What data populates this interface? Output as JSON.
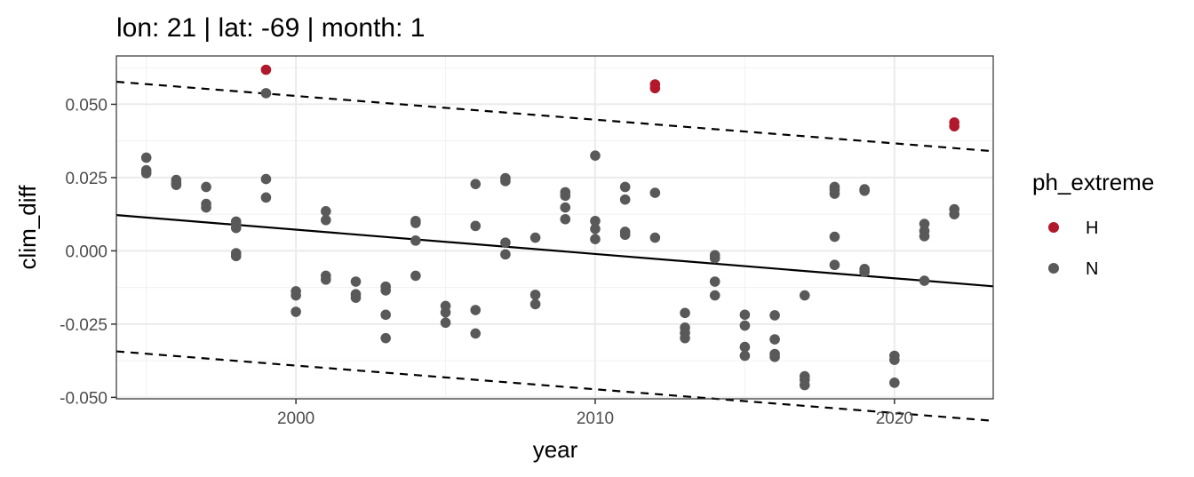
{
  "chart_data": {
    "type": "scatter",
    "title": "lon: 21 | lat: -69 | month: 1",
    "xlabel": "year",
    "ylabel": "clim_diff",
    "xlim": [
      1994.0,
      2023.3
    ],
    "ylim": [
      -0.0505,
      0.0665
    ],
    "xticks": [
      2000,
      2010,
      2020
    ],
    "xtick_labels": [
      "2000",
      "2010",
      "2020"
    ],
    "yticks": [
      -0.05,
      -0.025,
      0.0,
      0.025,
      0.05
    ],
    "ytick_labels": [
      "-0.050",
      "-0.025",
      "0.000",
      "0.025",
      "0.050"
    ],
    "grid": true,
    "legend": {
      "title": "ph_extreme",
      "position": "right",
      "entries": [
        {
          "label": "H",
          "color": "#b2182b"
        },
        {
          "label": "N",
          "color": "#595959"
        }
      ]
    },
    "series": [
      {
        "name": "H",
        "color": "#b2182b",
        "points": [
          [
            1999,
            0.0618
          ],
          [
            2012,
            0.0568
          ],
          [
            2012,
            0.0555
          ],
          [
            2022,
            0.0438
          ],
          [
            2022,
            0.0425
          ]
        ]
      },
      {
        "name": "N",
        "color": "#595959",
        "points": [
          [
            1995,
            0.0318
          ],
          [
            1995,
            0.0275
          ],
          [
            1995,
            0.0265
          ],
          [
            1996,
            0.0242
          ],
          [
            1996,
            0.0232
          ],
          [
            1996,
            0.0225
          ],
          [
            1997,
            0.0218
          ],
          [
            1997,
            0.016
          ],
          [
            1997,
            0.0148
          ],
          [
            1998,
            0.01
          ],
          [
            1998,
            0.009
          ],
          [
            1998,
            0.0078
          ],
          [
            1998,
            -0.0008
          ],
          [
            1998,
            -0.0018
          ],
          [
            1999,
            0.0538
          ],
          [
            1999,
            0.0245
          ],
          [
            1999,
            0.0182
          ],
          [
            2000,
            -0.0138
          ],
          [
            2000,
            -0.0152
          ],
          [
            2000,
            -0.0208
          ],
          [
            2001,
            0.0135
          ],
          [
            2001,
            0.0105
          ],
          [
            2001,
            -0.0085
          ],
          [
            2001,
            -0.0098
          ],
          [
            2002,
            -0.0105
          ],
          [
            2002,
            -0.0148
          ],
          [
            2002,
            -0.016
          ],
          [
            2003,
            -0.0122
          ],
          [
            2003,
            -0.0135
          ],
          [
            2003,
            -0.0218
          ],
          [
            2003,
            -0.0298
          ],
          [
            2004,
            0.0102
          ],
          [
            2004,
            0.0095
          ],
          [
            2004,
            0.0035
          ],
          [
            2004,
            -0.0085
          ],
          [
            2005,
            -0.0188
          ],
          [
            2005,
            -0.021
          ],
          [
            2005,
            -0.0245
          ],
          [
            2006,
            0.0228
          ],
          [
            2006,
            0.0085
          ],
          [
            2006,
            -0.0202
          ],
          [
            2006,
            -0.0282
          ],
          [
            2007,
            0.0248
          ],
          [
            2007,
            0.0238
          ],
          [
            2007,
            0.0028
          ],
          [
            2007,
            -0.0012
          ],
          [
            2008,
            0.0045
          ],
          [
            2008,
            -0.015
          ],
          [
            2008,
            -0.0182
          ],
          [
            2009,
            0.02
          ],
          [
            2009,
            0.0188
          ],
          [
            2009,
            0.0148
          ],
          [
            2009,
            0.0108
          ],
          [
            2010,
            0.0325
          ],
          [
            2010,
            0.0102
          ],
          [
            2010,
            0.0075
          ],
          [
            2010,
            0.004
          ],
          [
            2011,
            0.0218
          ],
          [
            2011,
            0.0175
          ],
          [
            2011,
            0.0065
          ],
          [
            2011,
            0.0055
          ],
          [
            2012,
            0.0198
          ],
          [
            2012,
            0.0045
          ],
          [
            2013,
            -0.0212
          ],
          [
            2013,
            -0.0262
          ],
          [
            2013,
            -0.028
          ],
          [
            2013,
            -0.0298
          ],
          [
            2014,
            -0.0015
          ],
          [
            2014,
            -0.0025
          ],
          [
            2014,
            -0.0105
          ],
          [
            2014,
            -0.0152
          ],
          [
            2015,
            -0.0218
          ],
          [
            2015,
            -0.0255
          ],
          [
            2015,
            -0.0328
          ],
          [
            2015,
            -0.0358
          ],
          [
            2016,
            -0.022
          ],
          [
            2016,
            -0.0302
          ],
          [
            2016,
            -0.0352
          ],
          [
            2016,
            -0.0362
          ],
          [
            2017,
            -0.0152
          ],
          [
            2017,
            -0.0428
          ],
          [
            2017,
            -0.044
          ],
          [
            2017,
            -0.0458
          ],
          [
            2018,
            0.0218
          ],
          [
            2018,
            0.0208
          ],
          [
            2018,
            0.0195
          ],
          [
            2018,
            0.0048
          ],
          [
            2018,
            -0.0048
          ],
          [
            2019,
            0.021
          ],
          [
            2019,
            0.0205
          ],
          [
            2019,
            -0.0062
          ],
          [
            2019,
            -0.0072
          ],
          [
            2020,
            -0.0358
          ],
          [
            2020,
            -0.0372
          ],
          [
            2020,
            -0.045
          ],
          [
            2021,
            0.0092
          ],
          [
            2021,
            0.0068
          ],
          [
            2021,
            0.005
          ],
          [
            2021,
            -0.0102
          ],
          [
            2022,
            0.0142
          ],
          [
            2022,
            0.0125
          ]
        ]
      }
    ],
    "lines": [
      {
        "name": "trend",
        "style": "solid",
        "x": [
          1994.0,
          2023.3
        ],
        "y": [
          0.0122,
          -0.0121
        ]
      },
      {
        "name": "upper",
        "style": "dashed",
        "x": [
          1994.0,
          2023.3
        ],
        "y": [
          0.0577,
          0.034
        ]
      },
      {
        "name": "lower",
        "style": "dashed",
        "x": [
          1994.0,
          2023.3
        ],
        "y": [
          -0.0343,
          -0.058
        ]
      }
    ]
  }
}
